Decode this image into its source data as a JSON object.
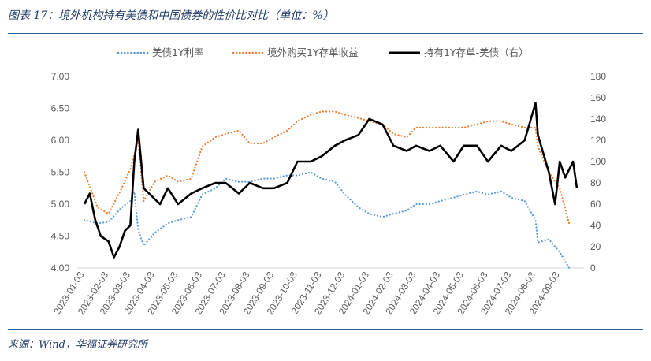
{
  "header": {
    "title": "图表 17：境外机构持有美债和中国债券的性价比对比（单位：%）"
  },
  "footer": {
    "source": "来源：Wind，华福证券研究所"
  },
  "colors": {
    "us_treasury": "#5b9bd5",
    "overseas": "#ed7d31",
    "spread": "#000000",
    "rule": "#2f5d95"
  },
  "chart_data": {
    "type": "line",
    "title": "",
    "x_ticks": [
      "2023-01-03",
      "2023-02-03",
      "2023-03-03",
      "2023-04-03",
      "2023-05-03",
      "2023-06-03",
      "2023-07-03",
      "2023-08-03",
      "2023-09-03",
      "2023-10-03",
      "2023-11-03",
      "2023-12-03",
      "2024-01-03",
      "2024-02-03",
      "2024-03-03",
      "2024-04-03",
      "2024-05-03",
      "2024-06-03",
      "2024-07-03",
      "2024-08-03",
      "2024-09-03"
    ],
    "y_left": {
      "ticks": [
        "4.00",
        "4.50",
        "5.00",
        "5.50",
        "6.00",
        "6.50",
        "7.00"
      ],
      "min": 4.0,
      "max": 7.0
    },
    "y_right": {
      "ticks": [
        "0",
        "20",
        "40",
        "60",
        "80",
        "100",
        "120",
        "140",
        "160",
        "180"
      ],
      "min": 0,
      "max": 180
    },
    "grid": false,
    "legend_position": "top",
    "series": [
      {
        "name": "美债1Y利率",
        "axis": "left",
        "style": "dotted",
        "color": "#5b9bd5",
        "x": [
          "2023-01-03",
          "2023-01-20",
          "2023-02-03",
          "2023-02-20",
          "2023-03-03",
          "2023-03-08",
          "2023-03-13",
          "2023-03-20",
          "2023-04-03",
          "2023-04-20",
          "2023-05-03",
          "2023-05-20",
          "2023-06-03",
          "2023-06-20",
          "2023-07-03",
          "2023-07-20",
          "2023-08-03",
          "2023-08-20",
          "2023-09-03",
          "2023-09-20",
          "2023-10-03",
          "2023-10-20",
          "2023-11-03",
          "2023-11-20",
          "2023-12-03",
          "2023-12-20",
          "2024-01-03",
          "2024-01-20",
          "2024-02-03",
          "2024-02-20",
          "2024-03-03",
          "2024-03-20",
          "2024-04-03",
          "2024-04-20",
          "2024-05-03",
          "2024-05-20",
          "2024-06-03",
          "2024-06-20",
          "2024-07-03",
          "2024-07-20",
          "2024-08-03",
          "2024-08-06",
          "2024-08-20",
          "2024-09-03",
          "2024-09-15"
        ],
        "values": [
          4.75,
          4.7,
          4.72,
          4.95,
          5.05,
          5.2,
          4.6,
          4.35,
          4.55,
          4.7,
          4.75,
          4.8,
          5.15,
          5.25,
          5.4,
          5.35,
          5.35,
          5.4,
          5.4,
          5.45,
          5.45,
          5.5,
          5.4,
          5.35,
          5.15,
          4.95,
          4.85,
          4.8,
          4.85,
          4.9,
          5.0,
          5.0,
          5.05,
          5.1,
          5.15,
          5.2,
          5.15,
          5.2,
          5.1,
          5.05,
          4.75,
          4.4,
          4.45,
          4.25,
          4.0
        ]
      },
      {
        "name": "境外购买1Y存单收益",
        "axis": "left",
        "style": "dotted",
        "color": "#ed7d31",
        "x": [
          "2023-01-03",
          "2023-01-20",
          "2023-02-03",
          "2023-02-20",
          "2023-03-03",
          "2023-03-13",
          "2023-03-20",
          "2023-04-03",
          "2023-04-20",
          "2023-05-03",
          "2023-05-20",
          "2023-06-03",
          "2023-06-20",
          "2023-07-03",
          "2023-07-20",
          "2023-08-03",
          "2023-08-20",
          "2023-09-03",
          "2023-09-20",
          "2023-10-03",
          "2023-10-20",
          "2023-11-03",
          "2023-11-20",
          "2023-12-03",
          "2023-12-20",
          "2024-01-03",
          "2024-01-20",
          "2024-02-03",
          "2024-02-20",
          "2024-03-03",
          "2024-03-20",
          "2024-04-03",
          "2024-04-20",
          "2024-05-03",
          "2024-05-20",
          "2024-06-03",
          "2024-06-20",
          "2024-07-03",
          "2024-07-20",
          "2024-08-03",
          "2024-08-06",
          "2024-08-20",
          "2024-09-03",
          "2024-09-15"
        ],
        "values": [
          5.5,
          4.95,
          4.85,
          5.25,
          5.55,
          6.0,
          5.05,
          5.35,
          5.45,
          5.35,
          5.4,
          5.9,
          6.05,
          6.1,
          6.15,
          5.95,
          5.95,
          6.05,
          6.15,
          6.3,
          6.4,
          6.45,
          6.45,
          6.4,
          6.35,
          6.3,
          6.25,
          6.1,
          6.05,
          6.2,
          6.2,
          6.2,
          6.2,
          6.2,
          6.25,
          6.3,
          6.3,
          6.25,
          6.2,
          6.2,
          5.9,
          5.5,
          5.25,
          4.7
        ]
      },
      {
        "name": "持有1Y存单-美债（右）",
        "axis": "right",
        "style": "solid",
        "color": "#000000",
        "x": [
          "2023-01-03",
          "2023-01-10",
          "2023-01-17",
          "2023-01-24",
          "2023-02-03",
          "2023-02-10",
          "2023-02-17",
          "2023-02-24",
          "2023-03-03",
          "2023-03-08",
          "2023-03-13",
          "2023-03-20",
          "2023-04-03",
          "2023-04-10",
          "2023-04-20",
          "2023-05-03",
          "2023-05-20",
          "2023-06-03",
          "2023-06-20",
          "2023-07-03",
          "2023-07-20",
          "2023-08-03",
          "2023-08-20",
          "2023-09-03",
          "2023-09-20",
          "2023-10-03",
          "2023-10-20",
          "2023-11-03",
          "2023-11-20",
          "2023-12-03",
          "2023-12-20",
          "2024-01-03",
          "2024-01-20",
          "2024-02-03",
          "2024-02-20",
          "2024-03-03",
          "2024-03-20",
          "2024-04-03",
          "2024-04-20",
          "2024-05-03",
          "2024-05-20",
          "2024-06-03",
          "2024-06-20",
          "2024-07-03",
          "2024-07-20",
          "2024-08-03",
          "2024-08-06",
          "2024-08-20",
          "2024-08-28",
          "2024-09-03",
          "2024-09-10",
          "2024-09-20",
          "2024-09-25"
        ],
        "values": [
          60,
          70,
          45,
          30,
          25,
          10,
          20,
          35,
          40,
          100,
          130,
          75,
          65,
          60,
          75,
          60,
          70,
          75,
          80,
          80,
          70,
          80,
          75,
          75,
          80,
          100,
          100,
          105,
          115,
          120,
          125,
          140,
          135,
          115,
          110,
          115,
          110,
          115,
          100,
          115,
          115,
          100,
          115,
          110,
          120,
          155,
          125,
          90,
          60,
          100,
          85,
          100,
          75
        ]
      }
    ]
  }
}
